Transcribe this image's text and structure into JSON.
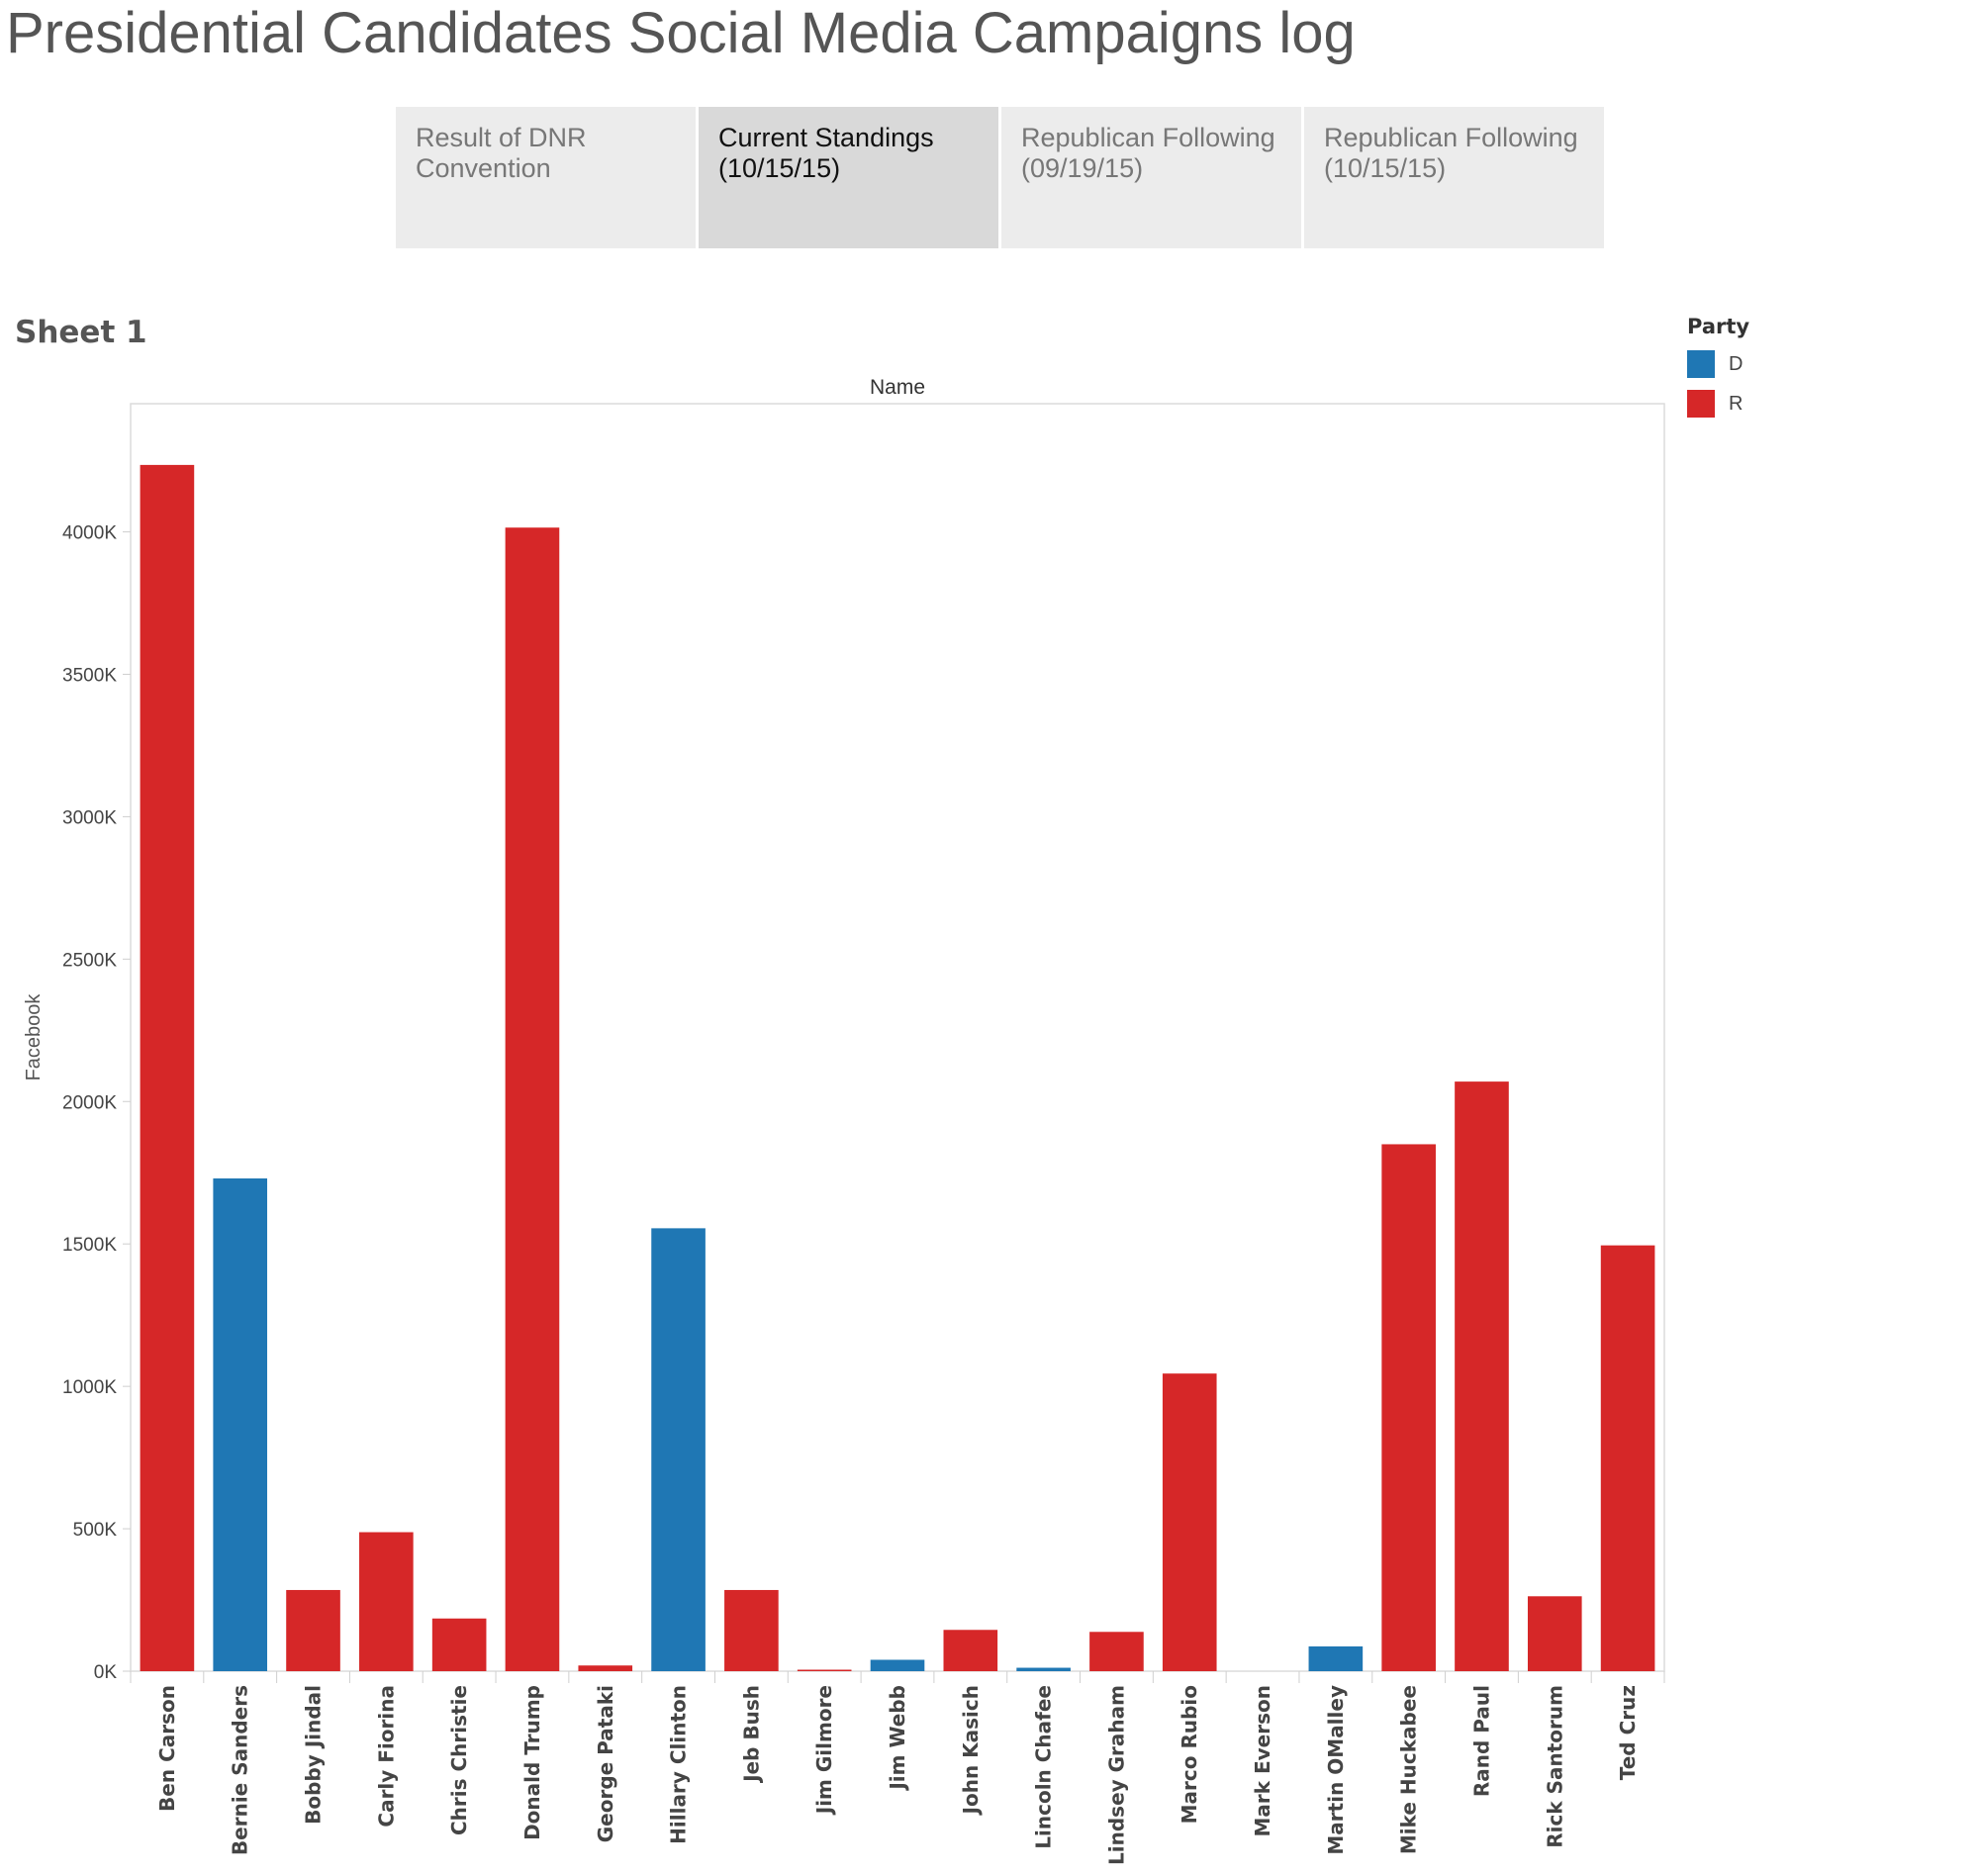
{
  "page": {
    "title": "Presidential Candidates Social Media Campaigns log",
    "sheet_title": "Sheet 1"
  },
  "tabs": [
    {
      "line1": "Result of DNR",
      "line2": "Convention",
      "active": false
    },
    {
      "line1": "Current Standings",
      "line2": "(10/15/15)",
      "active": true
    },
    {
      "line1": "Republican Following",
      "line2": "(09/19/15)",
      "active": false
    },
    {
      "line1": "Republican Following",
      "line2": "(10/15/15)",
      "active": false
    }
  ],
  "legend": {
    "title": "Party",
    "items": [
      {
        "label": "D",
        "color": "#1f77b4"
      },
      {
        "label": "R",
        "color": "#d62728"
      }
    ]
  },
  "chart_data": {
    "type": "bar",
    "title": "",
    "column_header": "Name",
    "xlabel": "",
    "ylabel": "Facebook",
    "ylim": [
      0,
      4450
    ],
    "yticks": [
      0,
      500,
      1000,
      1500,
      2000,
      2500,
      3000,
      3500,
      4000
    ],
    "ytick_labels": [
      "0K",
      "500K",
      "1000K",
      "1500K",
      "2000K",
      "2500K",
      "3000K",
      "3500K",
      "4000K"
    ],
    "grid": false,
    "legend_position": "top-right",
    "categories": [
      "Ben Carson",
      "Bernie Sanders",
      "Bobby Jindal",
      "Carly Fiorina",
      "Chris Christie",
      "Donald Trump",
      "George Pataki",
      "Hillary Clinton",
      "Jeb Bush",
      "Jim Gilmore",
      "Jim Webb",
      "John Kasich",
      "Lincoln Chafee",
      "Lindsey Graham",
      "Marco Rubio",
      "Mark Everson",
      "Martin OMalley",
      "Mike Huckabee",
      "Rand Paul",
      "Rick Santorum",
      "Ted Cruz"
    ],
    "values": [
      4235,
      1730,
      285,
      488,
      185,
      4015,
      20,
      1555,
      285,
      5,
      40,
      145,
      12,
      138,
      1045,
      0,
      87,
      1850,
      2070,
      263,
      1495
    ],
    "party": [
      "R",
      "D",
      "R",
      "R",
      "R",
      "R",
      "R",
      "D",
      "R",
      "R",
      "D",
      "R",
      "D",
      "R",
      "R",
      "R",
      "D",
      "R",
      "R",
      "R",
      "R"
    ],
    "colors": {
      "D": "#1f77b4",
      "R": "#d62728"
    }
  }
}
